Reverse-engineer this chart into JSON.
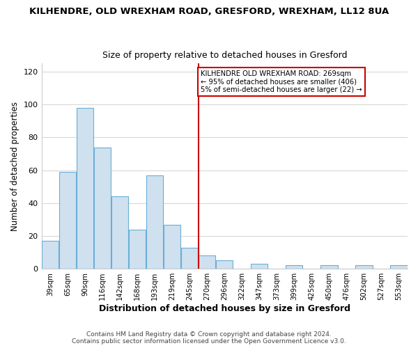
{
  "title": "KILHENDRE, OLD WREXHAM ROAD, GRESFORD, WREXHAM, LL12 8UA",
  "subtitle": "Size of property relative to detached houses in Gresford",
  "xlabel": "Distribution of detached houses by size in Gresford",
  "ylabel": "Number of detached properties",
  "footer1": "Contains HM Land Registry data © Crown copyright and database right 2024.",
  "footer2": "Contains public sector information licensed under the Open Government Licence v3.0.",
  "bar_labels": [
    "39sqm",
    "65sqm",
    "90sqm",
    "116sqm",
    "142sqm",
    "168sqm",
    "193sqm",
    "219sqm",
    "245sqm",
    "270sqm",
    "296sqm",
    "322sqm",
    "347sqm",
    "373sqm",
    "399sqm",
    "425sqm",
    "450sqm",
    "476sqm",
    "502sqm",
    "527sqm",
    "553sqm"
  ],
  "bar_values": [
    17,
    59,
    98,
    74,
    44,
    24,
    57,
    27,
    13,
    8,
    5,
    0,
    3,
    0,
    2,
    0,
    2,
    0,
    2,
    0,
    2
  ],
  "bar_color": "#cfe0ef",
  "bar_edge_color": "#6aaed6",
  "vline_color": "#cc0000",
  "annotation_title": "KILHENDRE OLD WREXHAM ROAD: 269sqm",
  "annotation_line1": "← 95% of detached houses are smaller (406)",
  "annotation_line2": "5% of semi-detached houses are larger (22) →",
  "annotation_box_edge": "#cc0000",
  "ylim": [
    0,
    125
  ],
  "yticks": [
    0,
    20,
    40,
    60,
    80,
    100,
    120
  ],
  "bg_color": "#ffffff",
  "plot_bg_color": "#ffffff",
  "grid_color": "#cccccc"
}
